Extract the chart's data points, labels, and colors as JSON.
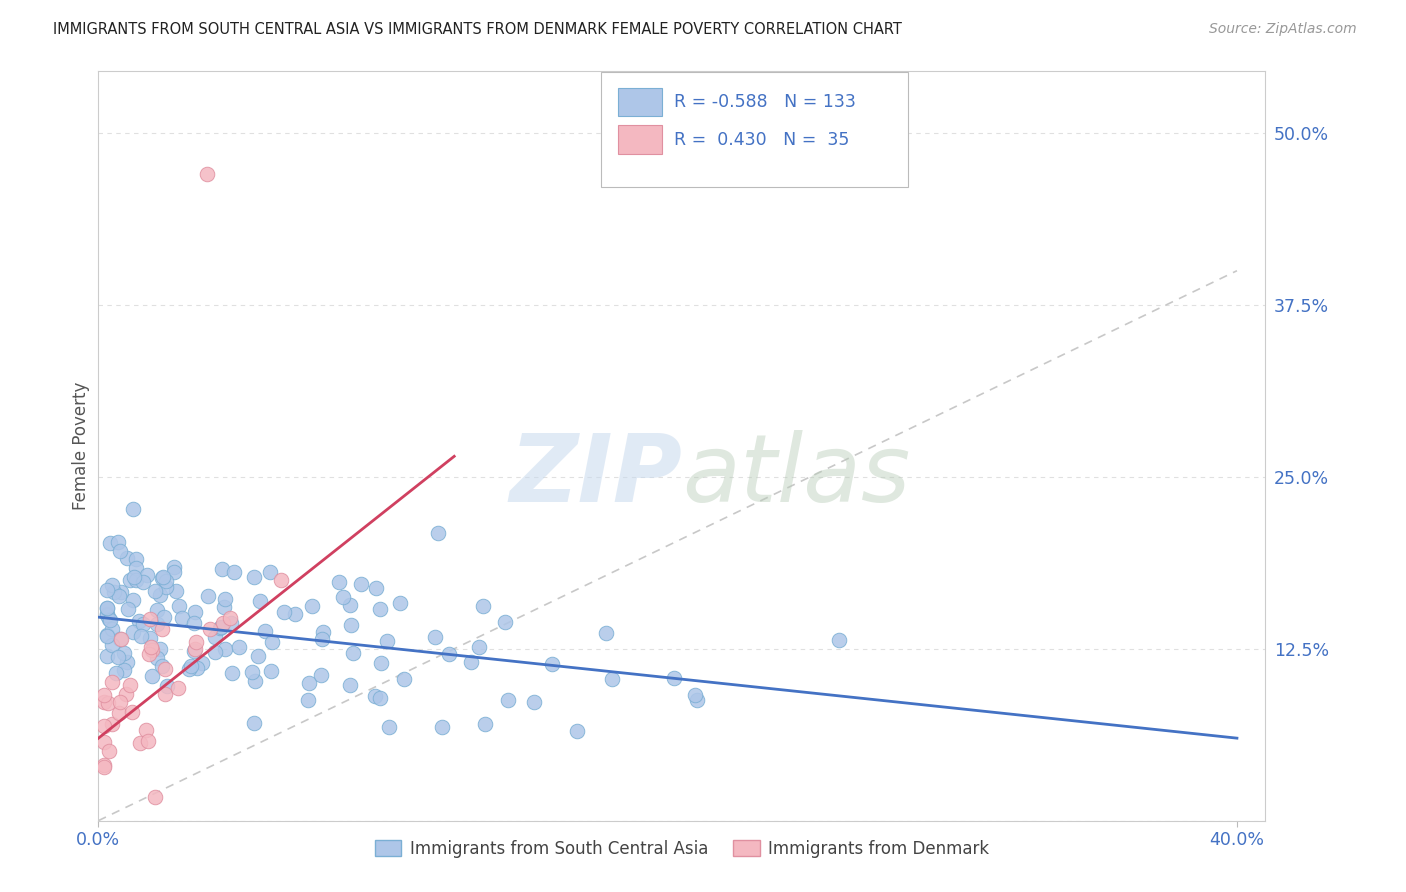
{
  "title": "IMMIGRANTS FROM SOUTH CENTRAL ASIA VS IMMIGRANTS FROM DENMARK FEMALE POVERTY CORRELATION CHART",
  "source": "Source: ZipAtlas.com",
  "ylabel": "Female Poverty",
  "y_ticks": [
    0.0,
    0.125,
    0.25,
    0.375,
    0.5
  ],
  "y_tick_labels": [
    "",
    "12.5%",
    "25.0%",
    "37.5%",
    "50.0%"
  ],
  "xlim": [
    0.0,
    0.41
  ],
  "ylim": [
    0.0,
    0.545
  ],
  "blue_trend_x": [
    0.0,
    0.4
  ],
  "blue_trend_y": [
    0.148,
    0.06
  ],
  "pink_trend_x": [
    0.0,
    0.125
  ],
  "pink_trend_y": [
    0.06,
    0.265
  ],
  "ref_line_x": [
    0.0,
    0.4
  ],
  "ref_line_y": [
    0.0,
    0.4
  ],
  "blue_color": "#aec6e8",
  "blue_edge": "#7bafd4",
  "pink_color": "#f4b8c1",
  "pink_edge": "#e090a0",
  "blue_line_color": "#4472c4",
  "pink_line_color": "#d04060",
  "ref_line_color": "#c8c8c8",
  "title_color": "#222222",
  "source_color": "#999999",
  "tick_label_color": "#4472c4",
  "grid_color": "#e0e0e0",
  "R_blue": "-0.588",
  "N_blue": "133",
  "R_pink": "0.430",
  "N_pink": "35",
  "label_blue": "Immigrants from South Central Asia",
  "label_pink": "Immigrants from Denmark"
}
